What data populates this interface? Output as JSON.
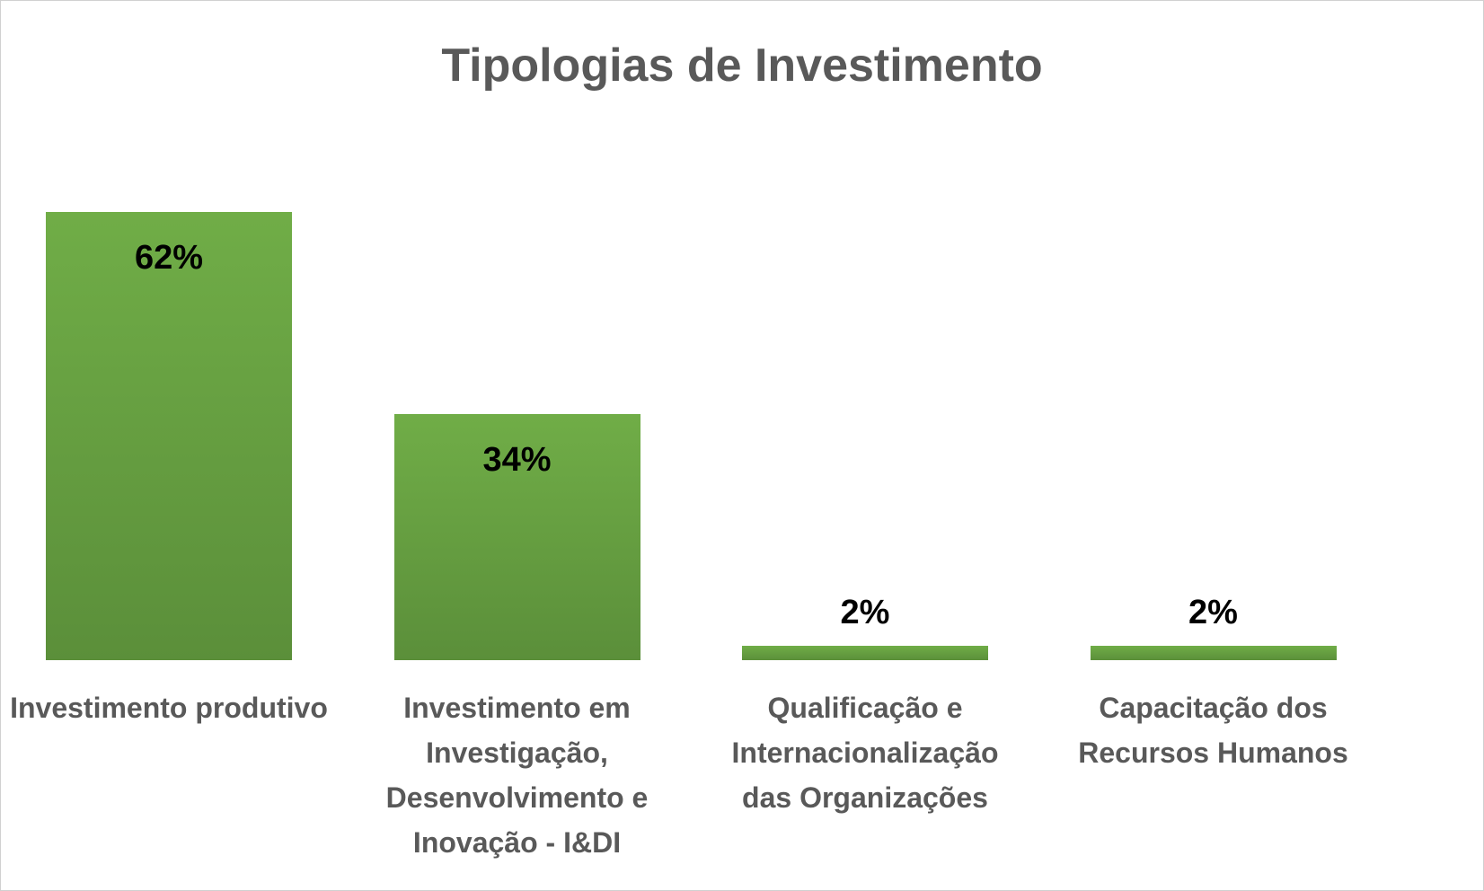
{
  "chart_data": {
    "type": "bar",
    "title": "Tipologias de Investimento",
    "categories": [
      "Investimento produtivo",
      "Investimento em Investigação, Desenvolvimento e Inovação - I&DI",
      "Qualificação e Internacionalização das Organizações",
      "Capacitação dos Recursos Humanos"
    ],
    "values": [
      62,
      34,
      2,
      2
    ],
    "value_labels": [
      "62%",
      "34%",
      "2%",
      "2%"
    ],
    "color": "#70ad47"
  }
}
